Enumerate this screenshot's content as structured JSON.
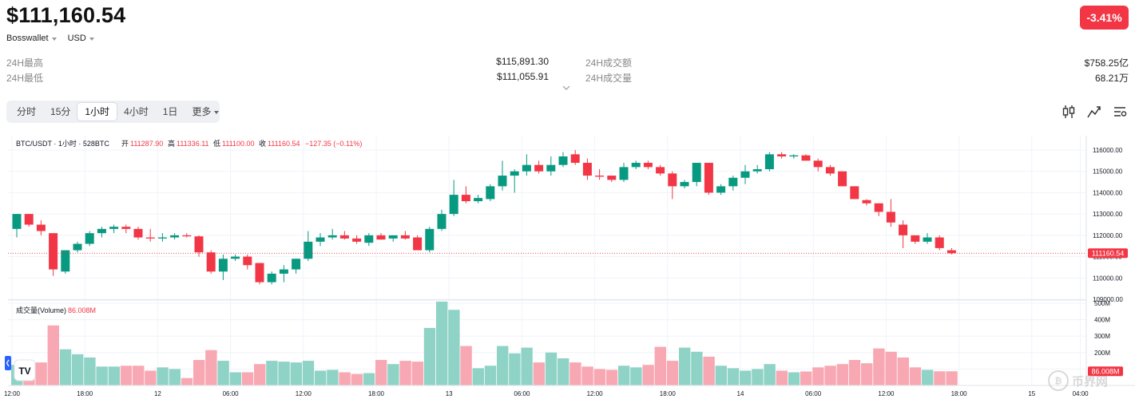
{
  "header": {
    "price": "$111,160.54",
    "change": "-3.41%",
    "source": "Bosswallet",
    "currency": "USD"
  },
  "stats": [
    {
      "label": "24H最高",
      "value": "$115,891.30"
    },
    {
      "label": "24H最低",
      "value": "$111,055.91"
    },
    {
      "label": "24H成交额",
      "value": "$758.25亿"
    },
    {
      "label": "24H成交量",
      "value": "68.21万"
    }
  ],
  "timeframes": [
    "分时",
    "15分",
    "1小时",
    "4小时",
    "1日"
  ],
  "active_timeframe": "1小时",
  "more_label": "更多",
  "legend": {
    "symbol": "BTC/USDT · 1小时 · 528BTC",
    "open_label": "开",
    "open": "111287.90",
    "high_label": "高",
    "high": "111336.11",
    "low_label": "低",
    "low": "111100.00",
    "close_label": "收",
    "close": "111160.54",
    "change": "−127.35 (−0.11%)"
  },
  "volume_legend": {
    "label": "成交量(Volume)",
    "value": "86.008M"
  },
  "last_price_tag": "111160.54",
  "volume_tag": "86.008M",
  "logo_text": "币界网",
  "tv_logo": "TV",
  "colors": {
    "up": "#089981",
    "down": "#f23645",
    "up_vol": "#8fd3c6",
    "down_vol": "#f8a8b2"
  },
  "chart_data": {
    "type": "candlestick",
    "price_axis": {
      "min": 109000,
      "max": 116000,
      "ticks": [
        "116000.00",
        "115000.00",
        "114000.00",
        "113000.00",
        "112000.00",
        "111000.00",
        "110000.00",
        "109000.00"
      ]
    },
    "volume_axis": {
      "ticks": [
        "500M",
        "400M",
        "300M",
        "200M",
        "100M"
      ]
    },
    "time_labels": [
      {
        "label": "12:00",
        "index": 0
      },
      {
        "label": "18:00",
        "index": 6
      },
      {
        "label": "12",
        "index": 12
      },
      {
        "label": "06:00",
        "index": 18
      },
      {
        "label": "12:00",
        "index": 24
      },
      {
        "label": "18:00",
        "index": 30
      },
      {
        "label": "13",
        "index": 36
      },
      {
        "label": "06:00",
        "index": 42
      },
      {
        "label": "12:00",
        "index": 48
      },
      {
        "label": "18:00",
        "index": 54
      },
      {
        "label": "14",
        "index": 60
      },
      {
        "label": "06:00",
        "index": 66
      },
      {
        "label": "12:00",
        "index": 72
      },
      {
        "label": "18:00",
        "index": 78
      },
      {
        "label": "15",
        "index": 84
      },
      {
        "label": "04:00",
        "index": 88
      }
    ],
    "candles": [
      {
        "o": 112300,
        "h": 113000,
        "l": 111900,
        "c": 113000,
        "v": 125
      },
      {
        "o": 113000,
        "h": 113000,
        "l": 112400,
        "c": 112500,
        "v": 140
      },
      {
        "o": 112500,
        "h": 112700,
        "l": 112000,
        "c": 112200,
        "v": 140
      },
      {
        "o": 112100,
        "h": 112100,
        "l": 110100,
        "c": 110400,
        "v": 365
      },
      {
        "o": 110300,
        "h": 111300,
        "l": 110200,
        "c": 111300,
        "v": 220
      },
      {
        "o": 111300,
        "h": 111700,
        "l": 111200,
        "c": 111600,
        "v": 190
      },
      {
        "o": 111600,
        "h": 112200,
        "l": 111500,
        "c": 112100,
        "v": 170
      },
      {
        "o": 112100,
        "h": 112400,
        "l": 111900,
        "c": 112300,
        "v": 115
      },
      {
        "o": 112300,
        "h": 112500,
        "l": 112100,
        "c": 112400,
        "v": 115
      },
      {
        "o": 112400,
        "h": 112500,
        "l": 112100,
        "c": 112300,
        "v": 120
      },
      {
        "o": 112300,
        "h": 112400,
        "l": 111800,
        "c": 111900,
        "v": 120
      },
      {
        "o": 111900,
        "h": 112300,
        "l": 111700,
        "c": 111850,
        "v": 90
      },
      {
        "o": 111850,
        "h": 112100,
        "l": 111700,
        "c": 111900,
        "v": 110
      },
      {
        "o": 111900,
        "h": 112100,
        "l": 111800,
        "c": 112000,
        "v": 100
      },
      {
        "o": 112000,
        "h": 112100,
        "l": 111900,
        "c": 111950,
        "v": 45
      },
      {
        "o": 111950,
        "h": 112000,
        "l": 111000,
        "c": 111200,
        "v": 155
      },
      {
        "o": 111200,
        "h": 111300,
        "l": 110200,
        "c": 110300,
        "v": 215
      },
      {
        "o": 110300,
        "h": 111100,
        "l": 109900,
        "c": 110900,
        "v": 150
      },
      {
        "o": 110900,
        "h": 111100,
        "l": 110800,
        "c": 111000,
        "v": 80
      },
      {
        "o": 111000,
        "h": 111100,
        "l": 110400,
        "c": 110600,
        "v": 80
      },
      {
        "o": 110700,
        "h": 110700,
        "l": 109700,
        "c": 109800,
        "v": 130
      },
      {
        "o": 109800,
        "h": 110300,
        "l": 109700,
        "c": 110200,
        "v": 150
      },
      {
        "o": 110200,
        "h": 110600,
        "l": 109800,
        "c": 110400,
        "v": 145
      },
      {
        "o": 110400,
        "h": 110900,
        "l": 110200,
        "c": 110900,
        "v": 140
      },
      {
        "o": 110900,
        "h": 112200,
        "l": 110800,
        "c": 111700,
        "v": 150
      },
      {
        "o": 111700,
        "h": 112100,
        "l": 111500,
        "c": 111900,
        "v": 90
      },
      {
        "o": 111900,
        "h": 112300,
        "l": 111800,
        "c": 112000,
        "v": 95
      },
      {
        "o": 112000,
        "h": 112200,
        "l": 111800,
        "c": 111850,
        "v": 80
      },
      {
        "o": 111850,
        "h": 112000,
        "l": 111600,
        "c": 111700,
        "v": 70
      },
      {
        "o": 111650,
        "h": 112100,
        "l": 111500,
        "c": 112000,
        "v": 75
      },
      {
        "o": 112000,
        "h": 112100,
        "l": 111800,
        "c": 111800,
        "v": 155
      },
      {
        "o": 111850,
        "h": 112000,
        "l": 111700,
        "c": 112000,
        "v": 130
      },
      {
        "o": 112000,
        "h": 112200,
        "l": 111800,
        "c": 111850,
        "v": 150
      },
      {
        "o": 111900,
        "h": 112000,
        "l": 111300,
        "c": 111300,
        "v": 145
      },
      {
        "o": 111300,
        "h": 112400,
        "l": 111200,
        "c": 112300,
        "v": 350
      },
      {
        "o": 112300,
        "h": 113200,
        "l": 112200,
        "c": 113000,
        "v": 510
      },
      {
        "o": 113000,
        "h": 114600,
        "l": 112900,
        "c": 113900,
        "v": 460
      },
      {
        "o": 113900,
        "h": 114300,
        "l": 113500,
        "c": 113600,
        "v": 240
      },
      {
        "o": 113600,
        "h": 113900,
        "l": 113500,
        "c": 113750,
        "v": 105
      },
      {
        "o": 113700,
        "h": 114400,
        "l": 113600,
        "c": 114300,
        "v": 120
      },
      {
        "o": 114300,
        "h": 115500,
        "l": 114100,
        "c": 114800,
        "v": 240
      },
      {
        "o": 114800,
        "h": 115100,
        "l": 114000,
        "c": 115000,
        "v": 195
      },
      {
        "o": 115000,
        "h": 115800,
        "l": 114800,
        "c": 115300,
        "v": 230
      },
      {
        "o": 115300,
        "h": 115500,
        "l": 114900,
        "c": 115000,
        "v": 140
      },
      {
        "o": 115000,
        "h": 115700,
        "l": 114800,
        "c": 115300,
        "v": 200
      },
      {
        "o": 115300,
        "h": 115900,
        "l": 115200,
        "c": 115700,
        "v": 165
      },
      {
        "o": 115800,
        "h": 116000,
        "l": 115300,
        "c": 115400,
        "v": 140
      },
      {
        "o": 115400,
        "h": 115600,
        "l": 114600,
        "c": 114800,
        "v": 115
      },
      {
        "o": 114800,
        "h": 115100,
        "l": 114600,
        "c": 114750,
        "v": 100
      },
      {
        "o": 114800,
        "h": 114800,
        "l": 114500,
        "c": 114600,
        "v": 95
      },
      {
        "o": 114600,
        "h": 115400,
        "l": 114500,
        "c": 115200,
        "v": 120
      },
      {
        "o": 115200,
        "h": 115500,
        "l": 115100,
        "c": 115400,
        "v": 110
      },
      {
        "o": 115400,
        "h": 115500,
        "l": 115100,
        "c": 115200,
        "v": 125
      },
      {
        "o": 115200,
        "h": 115300,
        "l": 114800,
        "c": 114900,
        "v": 235
      },
      {
        "o": 114900,
        "h": 115000,
        "l": 113700,
        "c": 114300,
        "v": 150
      },
      {
        "o": 114300,
        "h": 114600,
        "l": 114200,
        "c": 114500,
        "v": 230
      },
      {
        "o": 114500,
        "h": 115400,
        "l": 114300,
        "c": 115400,
        "v": 205
      },
      {
        "o": 115400,
        "h": 115400,
        "l": 113900,
        "c": 114000,
        "v": 175
      },
      {
        "o": 114000,
        "h": 114400,
        "l": 113900,
        "c": 114300,
        "v": 120
      },
      {
        "o": 114300,
        "h": 114800,
        "l": 114100,
        "c": 114700,
        "v": 105
      },
      {
        "o": 114700,
        "h": 115300,
        "l": 114400,
        "c": 115000,
        "v": 90
      },
      {
        "o": 115000,
        "h": 115300,
        "l": 114900,
        "c": 115100,
        "v": 100
      },
      {
        "o": 115100,
        "h": 115900,
        "l": 115000,
        "c": 115800,
        "v": 130
      },
      {
        "o": 115800,
        "h": 115900,
        "l": 115600,
        "c": 115700,
        "v": 90
      },
      {
        "o": 115700,
        "h": 115800,
        "l": 115600,
        "c": 115750,
        "v": 80
      },
      {
        "o": 115750,
        "h": 115800,
        "l": 115500,
        "c": 115500,
        "v": 85
      },
      {
        "o": 115500,
        "h": 115600,
        "l": 115000,
        "c": 115200,
        "v": 110
      },
      {
        "o": 115200,
        "h": 115300,
        "l": 114800,
        "c": 114900,
        "v": 120
      },
      {
        "o": 115000,
        "h": 115000,
        "l": 114300,
        "c": 114300,
        "v": 130
      },
      {
        "o": 114300,
        "h": 114300,
        "l": 113700,
        "c": 113700,
        "v": 155
      },
      {
        "o": 113650,
        "h": 113700,
        "l": 113400,
        "c": 113500,
        "v": 135
      },
      {
        "o": 113500,
        "h": 113500,
        "l": 112900,
        "c": 113100,
        "v": 225
      },
      {
        "o": 113100,
        "h": 113700,
        "l": 112400,
        "c": 112600,
        "v": 205
      },
      {
        "o": 112500,
        "h": 112700,
        "l": 111400,
        "c": 112000,
        "v": 170
      },
      {
        "o": 112000,
        "h": 112000,
        "l": 111600,
        "c": 111700,
        "v": 110
      },
      {
        "o": 111700,
        "h": 112100,
        "l": 111600,
        "c": 111900,
        "v": 95
      },
      {
        "o": 111900,
        "h": 112000,
        "l": 111300,
        "c": 111400,
        "v": 86
      },
      {
        "o": 111300,
        "h": 111400,
        "l": 111100,
        "c": 111160,
        "v": 86
      }
    ]
  }
}
